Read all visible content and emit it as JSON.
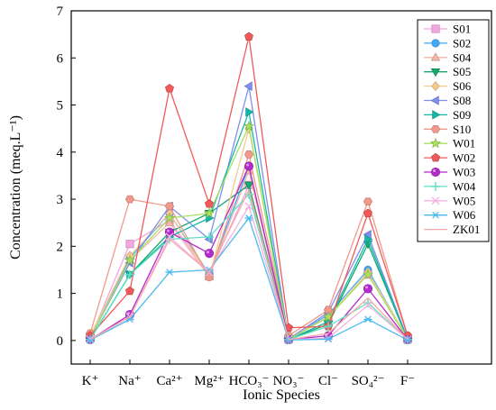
{
  "chart_data": {
    "type": "line",
    "xlabel": "Ionic Species",
    "ylabel": "Concentration (meq.L⁻¹)",
    "categories": [
      "K⁺",
      "Na⁺",
      "Ca²⁺",
      "Mg²⁺",
      "HCO₃⁻",
      "NO₃⁻",
      "Cl⁻",
      "SO₄²⁻",
      "F⁻"
    ],
    "ylim": [
      -0.5,
      7
    ],
    "yticks": [
      "0",
      "1",
      "2",
      "3",
      "4",
      "5",
      "6",
      "7"
    ],
    "grid": false,
    "legend_position": "right",
    "series": [
      {
        "name": "S01",
        "color": "#f3a6e0",
        "marker": "square",
        "values": [
          0.05,
          2.05,
          2.55,
          1.4,
          3.3,
          0.03,
          0.5,
          1.4,
          0.03
        ]
      },
      {
        "name": "S02",
        "color": "#3fa9f5",
        "marker": "circle",
        "values": [
          0.05,
          1.75,
          2.7,
          1.4,
          3.7,
          0.03,
          0.55,
          1.5,
          0.03
        ]
      },
      {
        "name": "S04",
        "color": "#f4b6a8",
        "marker": "triangle-up",
        "values": [
          0.05,
          1.7,
          2.5,
          1.35,
          3.6,
          0.02,
          0.5,
          1.45,
          0.02
        ]
      },
      {
        "name": "S05",
        "color": "#17a86b",
        "marker": "triangle-down",
        "values": [
          0.02,
          1.4,
          2.3,
          2.7,
          3.3,
          0.02,
          0.35,
          2.05,
          0.02
        ]
      },
      {
        "name": "S06",
        "color": "#f5ca8f",
        "marker": "diamond",
        "values": [
          0.1,
          1.8,
          2.7,
          1.35,
          4.5,
          0.05,
          0.5,
          1.45,
          0.05
        ]
      },
      {
        "name": "S08",
        "color": "#7f8fef",
        "marker": "triangle-left",
        "values": [
          0.05,
          1.65,
          2.85,
          2.15,
          5.4,
          0.03,
          0.6,
          2.25,
          0.03
        ]
      },
      {
        "name": "S09",
        "color": "#14b8a6",
        "marker": "triangle-right",
        "values": [
          0.03,
          1.4,
          2.2,
          2.6,
          4.85,
          0.02,
          0.4,
          2.15,
          0.02
        ]
      },
      {
        "name": "S10",
        "color": "#f1998a",
        "marker": "hexagon",
        "values": [
          0.15,
          3.0,
          2.85,
          1.35,
          3.95,
          0.1,
          0.65,
          2.95,
          0.1
        ]
      },
      {
        "name": "W01",
        "color": "#a8e060",
        "marker": "star",
        "values": [
          0.05,
          1.7,
          2.6,
          2.7,
          4.55,
          0.02,
          0.5,
          1.4,
          0.02
        ]
      },
      {
        "name": "W02",
        "color": "#f05a5a",
        "marker": "pentagon",
        "values": [
          0.1,
          1.05,
          5.35,
          2.9,
          6.45,
          0.27,
          0.3,
          2.7,
          0.1
        ]
      },
      {
        "name": "W03",
        "color": "#b52acc",
        "marker": "sphere",
        "values": [
          0.02,
          0.55,
          2.3,
          1.85,
          3.7,
          0.02,
          0.1,
          1.1,
          0.02
        ]
      },
      {
        "name": "W04",
        "color": "#5ee0c4",
        "marker": "plus",
        "values": [
          0.02,
          1.4,
          2.15,
          2.2,
          3.1,
          0.02,
          0.3,
          0.8,
          0.02
        ]
      },
      {
        "name": "W05",
        "color": "#f4b3e0",
        "marker": "cross",
        "values": [
          0.03,
          0.5,
          2.2,
          1.45,
          2.85,
          0.02,
          0.05,
          0.75,
          0.02
        ]
      },
      {
        "name": "W06",
        "color": "#4cb9ee",
        "marker": "asterisk",
        "values": [
          0.01,
          0.45,
          1.45,
          1.5,
          2.6,
          0.01,
          0.03,
          0.45,
          0.01
        ]
      },
      {
        "name": "ZK01",
        "color": "#f6a8a8",
        "marker": "none",
        "values": [
          0.02,
          0.5,
          2.15,
          1.45,
          3.2,
          0.02,
          0.15,
          0.9,
          0.02
        ]
      }
    ]
  }
}
